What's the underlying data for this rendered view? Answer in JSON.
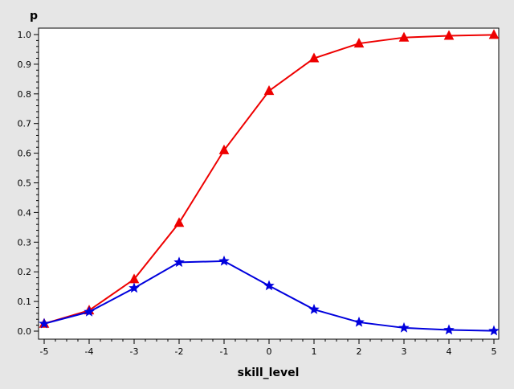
{
  "chart_data": {
    "type": "line",
    "xlabel": "skill_level",
    "ylabel": "p",
    "xlim": [
      -5,
      5
    ],
    "ylim": [
      0,
      1
    ],
    "x": [
      -5,
      -4,
      -3,
      -2,
      -1,
      0,
      1,
      2,
      3,
      4,
      5
    ],
    "x_tick_labels": [
      "-5",
      "-4",
      "-3",
      "-2",
      "-1",
      "0",
      "1",
      "2",
      "3",
      "4",
      "5"
    ],
    "y_ticks": [
      0,
      0.1,
      0.2,
      0.3,
      0.4,
      0.5,
      0.6,
      0.7,
      0.8,
      0.9,
      1.0
    ],
    "y_tick_labels": [
      "0.0",
      "0.1",
      "0.2",
      "0.3",
      "0.4",
      "0.5",
      "0.6",
      "0.7",
      "0.8",
      "0.9",
      "1.0"
    ],
    "grid": false,
    "legend": "none",
    "series": [
      {
        "color": "#ee0000",
        "marker": "triangle",
        "values": [
          0.025,
          0.07,
          0.175,
          0.365,
          0.61,
          0.81,
          0.92,
          0.97,
          0.99,
          0.996,
          0.999
        ]
      },
      {
        "color": "#0000dd",
        "marker": "star",
        "values": [
          0.025,
          0.065,
          0.145,
          0.232,
          0.236,
          0.153,
          0.073,
          0.03,
          0.011,
          0.004,
          0.001
        ]
      }
    ]
  }
}
